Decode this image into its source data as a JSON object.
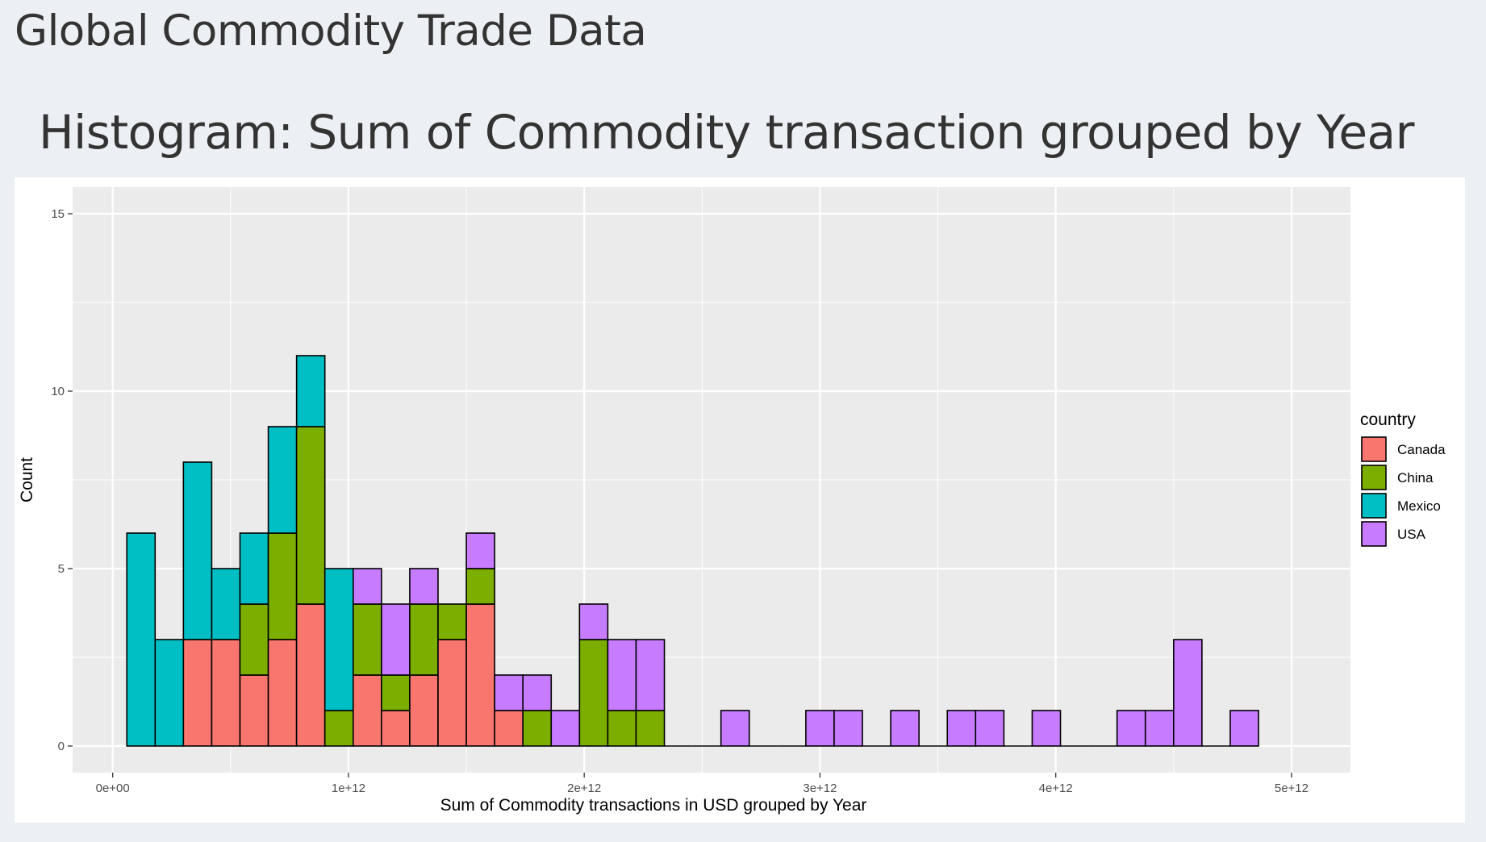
{
  "page": {
    "title": "Global Commodity Trade Data",
    "chart_heading": "Histogram: Sum of Commodity transaction grouped by Year"
  },
  "chart_data": {
    "type": "bar",
    "stacked": true,
    "title": "",
    "xlabel": "Sum of Commodity transactions in USD grouped by Year",
    "ylabel": "Count",
    "xlim": [
      -170000000000.0,
      5250000000000.0
    ],
    "ylim": [
      -0.75,
      15.75
    ],
    "bin_width": 120000000000.0,
    "x_ticks": [
      0,
      1000000000000.0,
      2000000000000.0,
      3000000000000.0,
      4000000000000.0,
      5000000000000.0
    ],
    "x_tick_labels": [
      "0e+00",
      "1e+12",
      "2e+12",
      "3e+12",
      "4e+12",
      "5e+12"
    ],
    "y_ticks": [
      0,
      5,
      10,
      15
    ],
    "y_tick_labels": [
      "0",
      "5",
      "10",
      "15"
    ],
    "grid": true,
    "legend": {
      "title": "country",
      "position": "right",
      "entries": [
        "Canada",
        "China",
        "Mexico",
        "USA"
      ]
    },
    "bin_centers": [
      120000000000.0,
      240000000000.0,
      360000000000.0,
      480000000000.0,
      600000000000.0,
      720000000000.0,
      840000000000.0,
      960000000000.0,
      1080000000000.0,
      1200000000000.0,
      1320000000000.0,
      1440000000000.0,
      1560000000000.0,
      1680000000000.0,
      1800000000000.0,
      1920000000000.0,
      2040000000000.0,
      2160000000000.0,
      2280000000000.0,
      2400000000000.0,
      2520000000000.0,
      2640000000000.0,
      2760000000000.0,
      2880000000000.0,
      3000000000000.0,
      3120000000000.0,
      3240000000000.0,
      3360000000000.0,
      3480000000000.0,
      3600000000000.0,
      3720000000000.0,
      3840000000000.0,
      3960000000000.0,
      4080000000000.0,
      4200000000000.0,
      4320000000000.0,
      4440000000000.0,
      4560000000000.0,
      4680000000000.0,
      4800000000000.0
    ],
    "series": [
      {
        "name": "Canada",
        "color": "#F8766D",
        "values": [
          0,
          0,
          3,
          3,
          2,
          3,
          4,
          0,
          2,
          1,
          2,
          3,
          4,
          1,
          0,
          0,
          0,
          0,
          0,
          0,
          0,
          0,
          0,
          0,
          0,
          0,
          0,
          0,
          0,
          0,
          0,
          0,
          0,
          0,
          0,
          0,
          0,
          0,
          0,
          0
        ]
      },
      {
        "name": "China",
        "color": "#7CAE00",
        "values": [
          0,
          0,
          0,
          0,
          2,
          3,
          5,
          1,
          2,
          1,
          2,
          1,
          1,
          0,
          1,
          0,
          3,
          1,
          1,
          0,
          0,
          0,
          0,
          0,
          0,
          0,
          0,
          0,
          0,
          0,
          0,
          0,
          0,
          0,
          0,
          0,
          0,
          0,
          0,
          0
        ]
      },
      {
        "name": "Mexico",
        "color": "#00BFC4",
        "values": [
          6,
          3,
          5,
          2,
          2,
          3,
          2,
          4,
          0,
          0,
          0,
          0,
          0,
          0,
          0,
          0,
          0,
          0,
          0,
          0,
          0,
          0,
          0,
          0,
          0,
          0,
          0,
          0,
          0,
          0,
          0,
          0,
          0,
          0,
          0,
          0,
          0,
          0,
          0,
          0
        ]
      },
      {
        "name": "USA",
        "color": "#C77CFF",
        "values": [
          0,
          0,
          0,
          0,
          0,
          0,
          0,
          0,
          1,
          2,
          1,
          0,
          1,
          1,
          1,
          1,
          1,
          2,
          2,
          0,
          0,
          1,
          0,
          0,
          1,
          1,
          0,
          1,
          0,
          1,
          1,
          0,
          1,
          0,
          0,
          1,
          1,
          3,
          0,
          1
        ]
      }
    ],
    "panel_background": "#EBEBEB",
    "grid_color": "#FFFFFF",
    "bar_outline": "#000000"
  }
}
